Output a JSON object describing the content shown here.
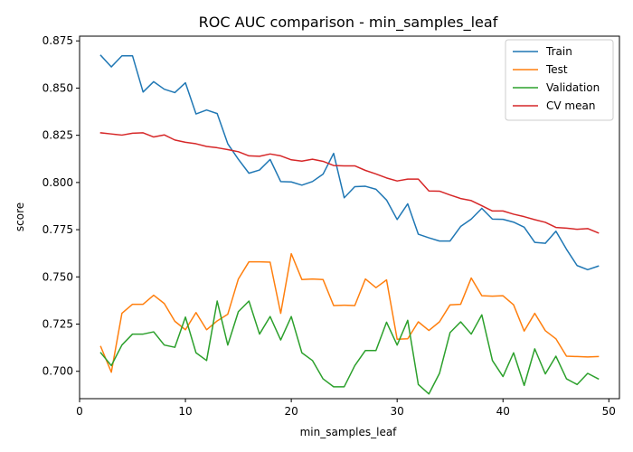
{
  "chart_data": {
    "type": "line",
    "title": "ROC AUC comparison - min_samples_leaf",
    "xlabel": "min_samples_leaf",
    "ylabel": "score",
    "xlim": [
      0,
      51
    ],
    "ylim": [
      0.6855,
      0.8775
    ],
    "xticks": [
      0,
      10,
      20,
      30,
      40,
      50
    ],
    "yticks": [
      0.7,
      0.725,
      0.75,
      0.775,
      0.8,
      0.825,
      0.85,
      0.875
    ],
    "legend_position": "top-right",
    "grid": false,
    "x": [
      2,
      3,
      4,
      5,
      6,
      7,
      8,
      9,
      10,
      11,
      12,
      13,
      14,
      15,
      16,
      17,
      18,
      19,
      20,
      21,
      22,
      23,
      24,
      25,
      26,
      27,
      28,
      29,
      30,
      31,
      32,
      33,
      34,
      35,
      36,
      37,
      38,
      39,
      40,
      41,
      42,
      43,
      44,
      45,
      46,
      47,
      48,
      49
    ],
    "series": [
      {
        "name": "Train",
        "color": "#1f77b4",
        "values": [
          0.8673,
          0.8612,
          0.8671,
          0.8671,
          0.8479,
          0.8534,
          0.8494,
          0.8476,
          0.8528,
          0.8363,
          0.8384,
          0.8365,
          0.8205,
          0.8123,
          0.8049,
          0.8066,
          0.8122,
          0.8005,
          0.8003,
          0.7986,
          0.8005,
          0.8044,
          0.8154,
          0.7919,
          0.7978,
          0.798,
          0.7964,
          0.7907,
          0.7804,
          0.7887,
          0.7726,
          0.7707,
          0.769,
          0.769,
          0.7767,
          0.7806,
          0.7863,
          0.7806,
          0.7805,
          0.779,
          0.7763,
          0.7683,
          0.7678,
          0.7742,
          0.7646,
          0.756,
          0.7538,
          0.7557
        ]
      },
      {
        "name": "Test",
        "color": "#ff7f0e",
        "values": [
          0.7131,
          0.6995,
          0.7307,
          0.7355,
          0.7355,
          0.7403,
          0.7359,
          0.7265,
          0.722,
          0.7311,
          0.722,
          0.7267,
          0.7302,
          0.7489,
          0.758,
          0.758,
          0.7578,
          0.7307,
          0.7623,
          0.7486,
          0.7489,
          0.7486,
          0.7348,
          0.735,
          0.7348,
          0.7489,
          0.7443,
          0.7484,
          0.717,
          0.7172,
          0.7262,
          0.7216,
          0.7262,
          0.7352,
          0.7355,
          0.7494,
          0.74,
          0.7398,
          0.74,
          0.7352,
          0.7213,
          0.7307,
          0.7215,
          0.7172,
          0.708,
          0.7078,
          0.7076,
          0.7078
        ]
      },
      {
        "name": "Validation",
        "color": "#2ca02c",
        "values": [
          0.7098,
          0.703,
          0.7139,
          0.7197,
          0.7197,
          0.7209,
          0.7139,
          0.7127,
          0.7287,
          0.7098,
          0.7057,
          0.7372,
          0.7139,
          0.7316,
          0.7372,
          0.7197,
          0.729,
          0.7166,
          0.729,
          0.7098,
          0.7057,
          0.696,
          0.6918,
          0.6918,
          0.703,
          0.711,
          0.711,
          0.726,
          0.7139,
          0.727,
          0.693,
          0.688,
          0.6989,
          0.7205,
          0.7262,
          0.7197,
          0.7299,
          0.7057,
          0.6972,
          0.7098,
          0.6925,
          0.7119,
          0.6986,
          0.708,
          0.696,
          0.693,
          0.6989,
          0.696
        ]
      },
      {
        "name": "CV mean",
        "color": "#d62728",
        "values": [
          0.8263,
          0.8257,
          0.8251,
          0.8261,
          0.8263,
          0.8241,
          0.8252,
          0.8225,
          0.8213,
          0.8205,
          0.8191,
          0.8184,
          0.8174,
          0.8163,
          0.8141,
          0.8139,
          0.8151,
          0.8141,
          0.812,
          0.8113,
          0.8123,
          0.8112,
          0.809,
          0.8088,
          0.8088,
          0.8064,
          0.8045,
          0.8024,
          0.8008,
          0.8018,
          0.8018,
          0.7955,
          0.7954,
          0.7934,
          0.7915,
          0.7904,
          0.7877,
          0.7849,
          0.7849,
          0.7832,
          0.7819,
          0.7803,
          0.7789,
          0.7762,
          0.7758,
          0.7752,
          0.7756,
          0.7733
        ]
      }
    ]
  }
}
